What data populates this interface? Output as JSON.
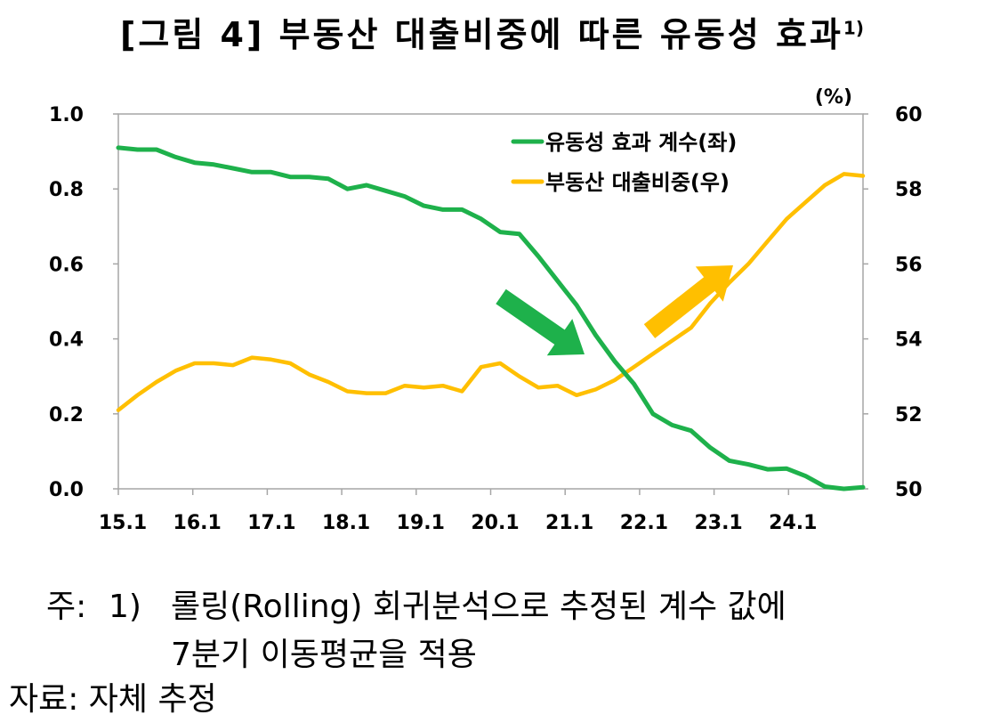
{
  "title": {
    "text": "[그림 4] 부동산 대출비중에 따른 유동성 효과",
    "sup": "1)"
  },
  "unit_label": "(%)",
  "notes": {
    "label": "주:",
    "number": "1)",
    "line1": "롤링(Rolling) 회귀분석으로 추정된 계수 값에",
    "line2": "7분기 이동평균을 적용",
    "source": "자료: 자체 추정"
  },
  "colors": {
    "liquidity": "#1eb14b",
    "loan": "#ffbf00",
    "axis": "#a6a6a6"
  },
  "chart_data": {
    "type": "line",
    "title": "부동산 대출비중에 따른 유동성 효과",
    "x_tick_labels": [
      "15.1",
      "16.1",
      "17.1",
      "18.1",
      "19.1",
      "20.1",
      "21.1",
      "22.1",
      "23.1",
      "24.1"
    ],
    "x_start": "2015Q1",
    "x_end": "2024Q4",
    "y_left": {
      "min": 0.0,
      "max": 1.0,
      "ticks": [
        "0.0",
        "0.2",
        "0.4",
        "0.6",
        "0.8",
        "1.0"
      ]
    },
    "y_right": {
      "min": 50,
      "max": 60,
      "ticks": [
        "50",
        "52",
        "54",
        "56",
        "58",
        "60"
      ],
      "unit": "%"
    },
    "legend_position": "top-right",
    "grid": false,
    "series": [
      {
        "name": "유동성 효과 계수(좌)",
        "axis": "left",
        "values": [
          0.91,
          0.905,
          0.905,
          0.885,
          0.87,
          0.865,
          0.855,
          0.845,
          0.845,
          0.832,
          0.832,
          0.827,
          0.8,
          0.81,
          0.795,
          0.78,
          0.755,
          0.745,
          0.745,
          0.72,
          0.685,
          0.68,
          0.62,
          0.555,
          0.49,
          0.41,
          0.34,
          0.28,
          0.2,
          0.17,
          0.155,
          0.11,
          0.075,
          0.065,
          0.052,
          0.054,
          0.034,
          0.006,
          0.0,
          0.004
        ]
      },
      {
        "name": "부동산 대출비중(우)",
        "axis": "right",
        "values": [
          52.1,
          52.5,
          52.85,
          53.15,
          53.35,
          53.35,
          53.3,
          53.5,
          53.45,
          53.35,
          53.05,
          52.85,
          52.6,
          52.55,
          52.55,
          52.75,
          52.7,
          52.75,
          52.6,
          53.25,
          53.35,
          53.0,
          52.7,
          52.75,
          52.5,
          52.65,
          52.9,
          53.25,
          53.6,
          53.95,
          54.3,
          54.95,
          55.5,
          56.0,
          56.6,
          57.2,
          57.65,
          58.1,
          58.4,
          58.35
        ]
      }
    ],
    "annotations": [
      {
        "type": "arrow",
        "direction": "down",
        "series": "유동성 효과 계수(좌)"
      },
      {
        "type": "arrow",
        "direction": "up",
        "series": "부동산 대출비중(우)"
      }
    ]
  }
}
